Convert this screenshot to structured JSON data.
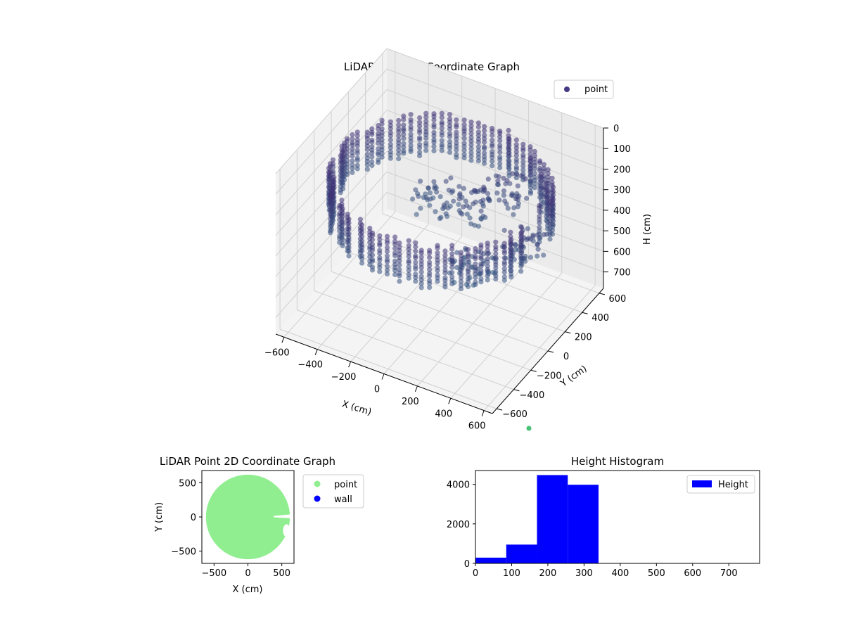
{
  "chart_data": [
    {
      "type": "scatter3d",
      "title": "LiDAR Point 3D Coordinate Graph",
      "xlabel": "X (cm)",
      "ylabel": "Y (cm)",
      "zlabel": "H (cm)",
      "xlim": [
        -650,
        650
      ],
      "ylim": [
        -650,
        650
      ],
      "zlim": [
        0,
        780
      ],
      "z_inverted": true,
      "x_ticks": [
        -600,
        -400,
        -200,
        0,
        200,
        400,
        600
      ],
      "y_ticks": [
        -600,
        -400,
        -200,
        0,
        200,
        400,
        600
      ],
      "z_ticks": [
        0,
        100,
        200,
        300,
        400,
        500,
        600,
        700
      ],
      "legend": {
        "entries": [
          "point"
        ],
        "placement": "upper-right"
      },
      "grid": true,
      "series": [
        {
          "name": "point",
          "color_low_height": "#2c7f8e",
          "color_high_height": "#46126b",
          "legend_color": "#443983",
          "wall": {
            "radius": 600,
            "height_range": [
              150,
              330
            ],
            "angle_gap_deg": [
              -12,
              12
            ]
          },
          "interior_clusters": [
            {
              "x": 250,
              "y": 300,
              "h": 260
            },
            {
              "x": 100,
              "y": 150,
              "h": 300
            },
            {
              "x": -100,
              "y": 150,
              "h": 320
            },
            {
              "x": 300,
              "y": -200,
              "h": 380
            },
            {
              "x": 500,
              "y": 0,
              "h": 300
            }
          ]
        }
      ],
      "outlier": {
        "color": "#4fc27a",
        "note_value": true
      }
    },
    {
      "type": "scatter",
      "title": "LiDAR Point 2D Coordinate Graph",
      "xlabel": "X (cm)",
      "ylabel": "Y (cm)",
      "xlim": [
        -680,
        680
      ],
      "ylim": [
        -680,
        680
      ],
      "x_ticks": [
        -500,
        0,
        500
      ],
      "y_ticks": [
        -500,
        0,
        500
      ],
      "legend": {
        "entries": [
          "point",
          "wall"
        ],
        "placement": "outside-right"
      },
      "series": [
        {
          "name": "point",
          "color": "#90ee90",
          "shape": "disk",
          "radius": 620
        },
        {
          "name": "wall",
          "color": "#0000ff"
        }
      ]
    },
    {
      "type": "bar",
      "title": "Height Histogram",
      "xlabel": "",
      "ylabel": "",
      "xlim": [
        0,
        785
      ],
      "ylim": [
        0,
        4700
      ],
      "x_ticks": [
        0,
        100,
        200,
        300,
        400,
        500,
        600,
        700
      ],
      "y_ticks": [
        0,
        2000,
        4000
      ],
      "legend": {
        "entries": [
          "Height"
        ],
        "placement": "upper-right"
      },
      "series": [
        {
          "name": "Height",
          "color": "#0000ff",
          "bins": [
            0,
            85,
            170,
            255,
            340,
            425,
            510,
            595,
            680,
            765
          ],
          "values": [
            290,
            950,
            4470,
            3980,
            0,
            0,
            0,
            0,
            0
          ]
        }
      ]
    }
  ]
}
